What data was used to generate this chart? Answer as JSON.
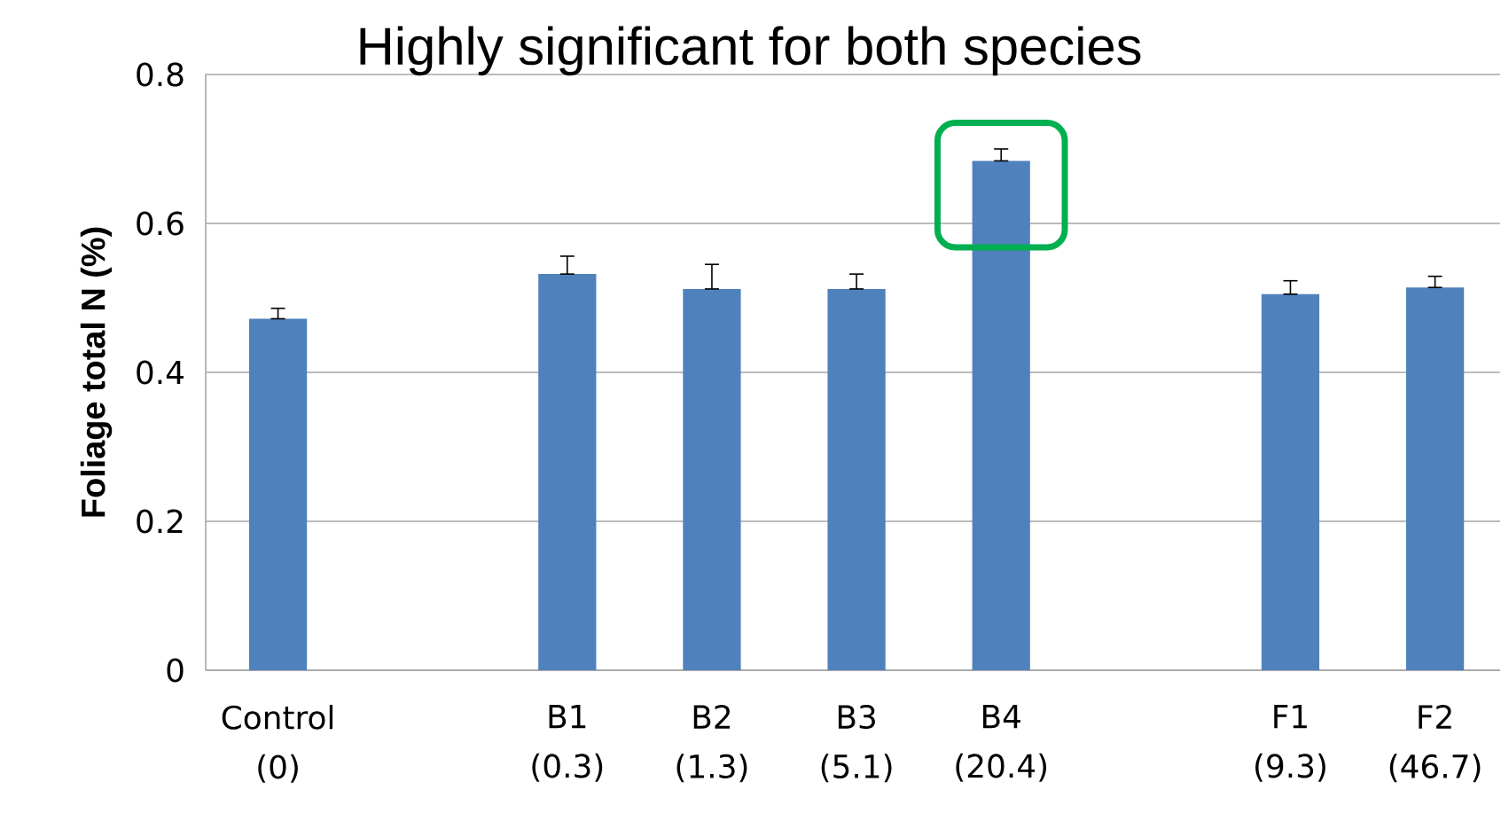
{
  "chart_data": {
    "type": "bar",
    "title": "Highly significant for both species",
    "ylabel": "Foliage total N (%)",
    "categories": [
      "Control (0)",
      null,
      "B1 (0.3)",
      "B2 (1.3)",
      "B3 (5.1)",
      "B4 (20.4)",
      null,
      "F1 (9.3)",
      "F2 (46.7)"
    ],
    "values": [
      0.472,
      null,
      0.532,
      0.512,
      0.512,
      0.684,
      null,
      0.505,
      0.514
    ],
    "errors": [
      [
        0.472,
        0.486
      ],
      null,
      [
        0.532,
        0.556
      ],
      [
        0.512,
        0.545
      ],
      [
        0.512,
        0.532
      ],
      [
        0.684,
        0.7
      ],
      null,
      [
        0.505,
        0.523
      ],
      [
        0.514,
        0.529
      ]
    ],
    "color": "#4f81bd",
    "ylim": [
      0,
      0.8
    ],
    "yticks": [
      0,
      0.2,
      0.4,
      0.6,
      0.8
    ],
    "grid": "y"
  }
}
